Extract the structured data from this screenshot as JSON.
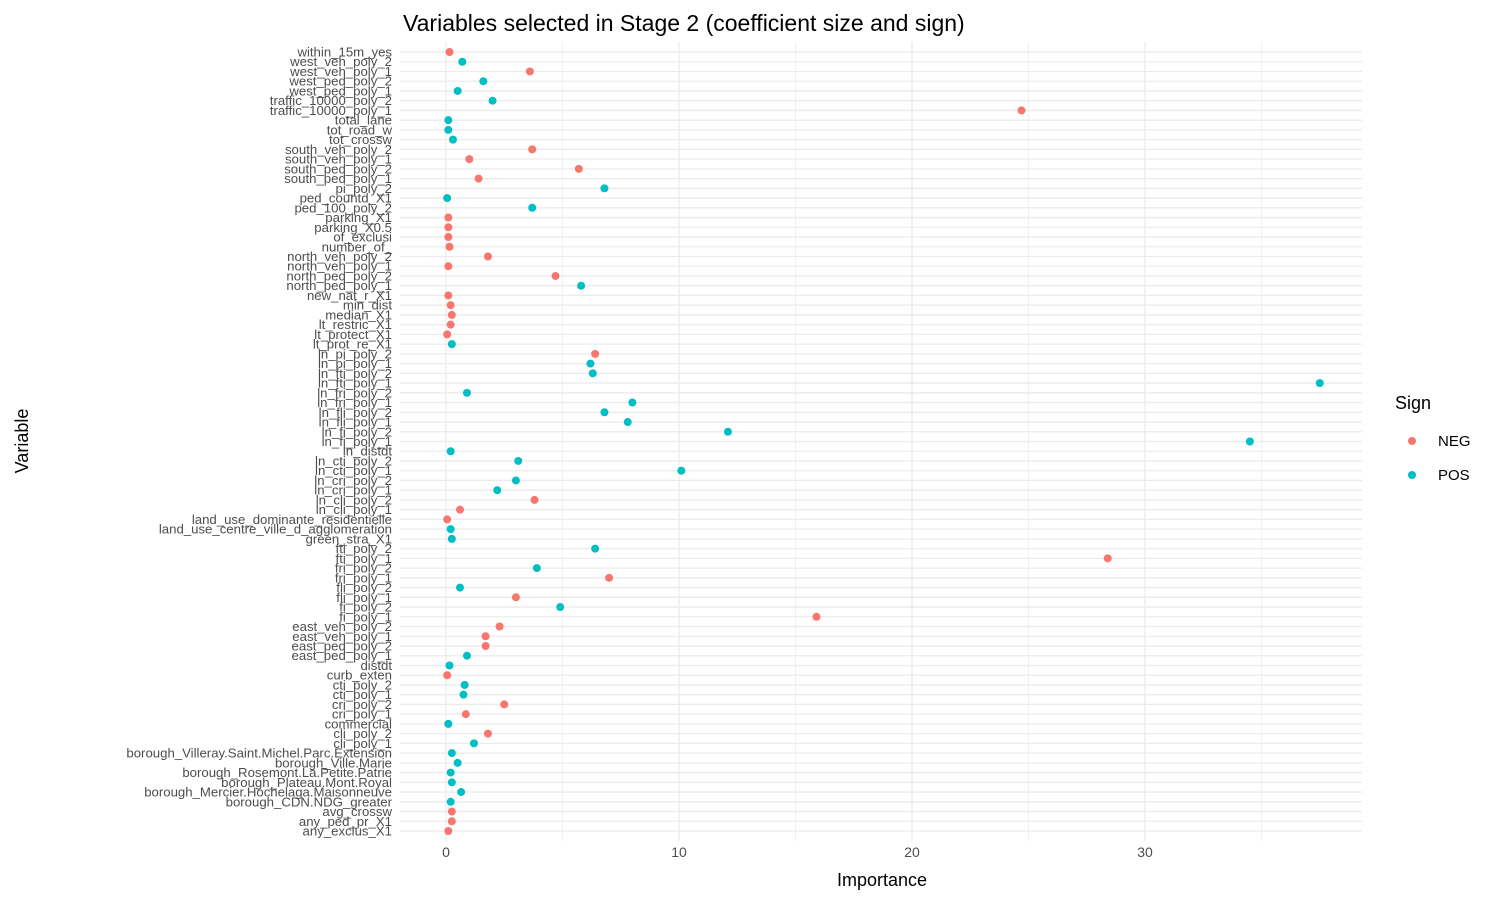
{
  "chart_data": {
    "type": "scatter",
    "title": "Variables selected in Stage 2 (coefficient size and sign)",
    "xlabel": "Importance",
    "ylabel": "Variable",
    "xlim": [
      -1.5,
      39
    ],
    "x_ticks": [
      0,
      10,
      20,
      30
    ],
    "x_tick_labels": [
      "0",
      "10",
      "20",
      "30"
    ],
    "grid": true,
    "legend": {
      "title": "Sign",
      "position": "right",
      "entries": [
        {
          "label": "NEG",
          "color": "#F8766D"
        },
        {
          "label": "POS",
          "color": "#00BFC4"
        }
      ]
    },
    "points": [
      {
        "variable": "within_15m_yes",
        "value": 0.15,
        "sign": "NEG"
      },
      {
        "variable": "west_veh_poly_2",
        "value": 0.7,
        "sign": "POS"
      },
      {
        "variable": "west_veh_poly_1",
        "value": 3.6,
        "sign": "NEG"
      },
      {
        "variable": "west_ped_poly_2",
        "value": 1.6,
        "sign": "POS"
      },
      {
        "variable": "west_ped_poly_1",
        "value": 0.5,
        "sign": "POS"
      },
      {
        "variable": "traffic_10000_poly_2",
        "value": 2.0,
        "sign": "POS"
      },
      {
        "variable": "traffic_10000_poly_1",
        "value": 24.7,
        "sign": "NEG"
      },
      {
        "variable": "total_lane",
        "value": 0.1,
        "sign": "POS"
      },
      {
        "variable": "tot_road_w",
        "value": 0.1,
        "sign": "POS"
      },
      {
        "variable": "tot_crossw",
        "value": 0.3,
        "sign": "POS"
      },
      {
        "variable": "south_veh_poly_2",
        "value": 3.7,
        "sign": "NEG"
      },
      {
        "variable": "south_veh_poly_1",
        "value": 1.0,
        "sign": "NEG"
      },
      {
        "variable": "south_ped_poly_2",
        "value": 5.7,
        "sign": "NEG"
      },
      {
        "variable": "south_ped_poly_1",
        "value": 1.4,
        "sign": "NEG"
      },
      {
        "variable": "pi_poly_2",
        "value": 6.8,
        "sign": "POS"
      },
      {
        "variable": "ped_countd_X1",
        "value": 0.05,
        "sign": "POS"
      },
      {
        "variable": "ped_100_poly_2",
        "value": 3.7,
        "sign": "POS"
      },
      {
        "variable": "parking_X1",
        "value": 0.1,
        "sign": "NEG"
      },
      {
        "variable": "parking_X0.5",
        "value": 0.1,
        "sign": "NEG"
      },
      {
        "variable": "of_exclusi",
        "value": 0.1,
        "sign": "NEG"
      },
      {
        "variable": "number_of_",
        "value": 0.15,
        "sign": "NEG"
      },
      {
        "variable": "north_veh_poly_2",
        "value": 1.8,
        "sign": "NEG"
      },
      {
        "variable": "north_veh_poly_1",
        "value": 0.1,
        "sign": "NEG"
      },
      {
        "variable": "north_ped_poly_2",
        "value": 4.7,
        "sign": "NEG"
      },
      {
        "variable": "north_ped_poly_1",
        "value": 5.8,
        "sign": "POS"
      },
      {
        "variable": "new_nat_r_X1",
        "value": 0.1,
        "sign": "NEG"
      },
      {
        "variable": "min_dist",
        "value": 0.2,
        "sign": "NEG"
      },
      {
        "variable": "median_X1",
        "value": 0.25,
        "sign": "NEG"
      },
      {
        "variable": "lt_restric_X1",
        "value": 0.2,
        "sign": "NEG"
      },
      {
        "variable": "lt_protect_X1",
        "value": 0.05,
        "sign": "NEG"
      },
      {
        "variable": "lt_prot_re_X1",
        "value": 0.25,
        "sign": "POS"
      },
      {
        "variable": "ln_pi_poly_2",
        "value": 6.4,
        "sign": "NEG"
      },
      {
        "variable": "ln_pi_poly_1",
        "value": 6.2,
        "sign": "POS"
      },
      {
        "variable": "ln_fti_poly_2",
        "value": 6.3,
        "sign": "POS"
      },
      {
        "variable": "ln_fti_poly_1",
        "value": 37.5,
        "sign": "POS"
      },
      {
        "variable": "ln_fri_poly_2",
        "value": 0.9,
        "sign": "POS"
      },
      {
        "variable": "ln_fri_poly_1",
        "value": 8.0,
        "sign": "POS"
      },
      {
        "variable": "ln_fli_poly_2",
        "value": 6.8,
        "sign": "POS"
      },
      {
        "variable": "ln_fli_poly_1",
        "value": 7.8,
        "sign": "POS"
      },
      {
        "variable": "ln_fi_poly_2",
        "value": 12.1,
        "sign": "POS"
      },
      {
        "variable": "ln_fi_poly_1",
        "value": 34.5,
        "sign": "POS"
      },
      {
        "variable": "ln_distdt",
        "value": 0.2,
        "sign": "POS"
      },
      {
        "variable": "ln_cti_poly_2",
        "value": 3.1,
        "sign": "POS"
      },
      {
        "variable": "ln_cti_poly_1",
        "value": 10.1,
        "sign": "POS"
      },
      {
        "variable": "ln_cri_poly_2",
        "value": 3.0,
        "sign": "POS"
      },
      {
        "variable": "ln_cri_poly_1",
        "value": 2.2,
        "sign": "POS"
      },
      {
        "variable": "ln_cli_poly_2",
        "value": 3.8,
        "sign": "NEG"
      },
      {
        "variable": "ln_cli_poly_1",
        "value": 0.6,
        "sign": "NEG"
      },
      {
        "variable": "land_use_dominante_residentielle",
        "value": 0.05,
        "sign": "NEG"
      },
      {
        "variable": "land_use_centre_ville_d_agglomeration",
        "value": 0.2,
        "sign": "POS"
      },
      {
        "variable": "green_stra_X1",
        "value": 0.25,
        "sign": "POS"
      },
      {
        "variable": "fti_poly_2",
        "value": 6.4,
        "sign": "POS"
      },
      {
        "variable": "fti_poly_1",
        "value": 28.4,
        "sign": "NEG"
      },
      {
        "variable": "fri_poly_2",
        "value": 3.9,
        "sign": "POS"
      },
      {
        "variable": "fri_poly_1",
        "value": 7.0,
        "sign": "NEG"
      },
      {
        "variable": "fli_poly_2",
        "value": 0.6,
        "sign": "POS"
      },
      {
        "variable": "fli_poly_1",
        "value": 3.0,
        "sign": "NEG"
      },
      {
        "variable": "fi_poly_2",
        "value": 4.9,
        "sign": "POS"
      },
      {
        "variable": "fi_poly_1",
        "value": 15.9,
        "sign": "NEG"
      },
      {
        "variable": "east_veh_poly_2",
        "value": 2.3,
        "sign": "NEG"
      },
      {
        "variable": "east_veh_poly_1",
        "value": 1.7,
        "sign": "NEG"
      },
      {
        "variable": "east_ped_poly_2",
        "value": 1.7,
        "sign": "NEG"
      },
      {
        "variable": "east_ped_poly_1",
        "value": 0.9,
        "sign": "POS"
      },
      {
        "variable": "distdt",
        "value": 0.15,
        "sign": "POS"
      },
      {
        "variable": "curb_exten",
        "value": 0.05,
        "sign": "NEG"
      },
      {
        "variable": "cti_poly_2",
        "value": 0.8,
        "sign": "POS"
      },
      {
        "variable": "cti_poly_1",
        "value": 0.75,
        "sign": "POS"
      },
      {
        "variable": "cri_poly_2",
        "value": 2.5,
        "sign": "NEG"
      },
      {
        "variable": "cri_poly_1",
        "value": 0.85,
        "sign": "NEG"
      },
      {
        "variable": "commercial",
        "value": 0.1,
        "sign": "POS"
      },
      {
        "variable": "cli_poly_2",
        "value": 1.8,
        "sign": "NEG"
      },
      {
        "variable": "cli_poly_1",
        "value": 1.2,
        "sign": "POS"
      },
      {
        "variable": "borough_Villeray.Saint.Michel.Parc.Extension",
        "value": 0.25,
        "sign": "POS"
      },
      {
        "variable": "borough_Ville.Marie",
        "value": 0.5,
        "sign": "POS"
      },
      {
        "variable": "borough_Rosemont.La.Petite.Patrie",
        "value": 0.2,
        "sign": "POS"
      },
      {
        "variable": "borough_Plateau.Mont.Royal",
        "value": 0.25,
        "sign": "POS"
      },
      {
        "variable": "borough_Mercier.Hochelaga.Maisonneuve",
        "value": 0.65,
        "sign": "POS"
      },
      {
        "variable": "borough_CDN.NDG_greater",
        "value": 0.2,
        "sign": "POS"
      },
      {
        "variable": "avg_crossw",
        "value": 0.25,
        "sign": "NEG"
      },
      {
        "variable": "any_ped_pr_X1",
        "value": 0.25,
        "sign": "NEG"
      },
      {
        "variable": "any_exclus_X1",
        "value": 0.1,
        "sign": "NEG"
      }
    ]
  }
}
